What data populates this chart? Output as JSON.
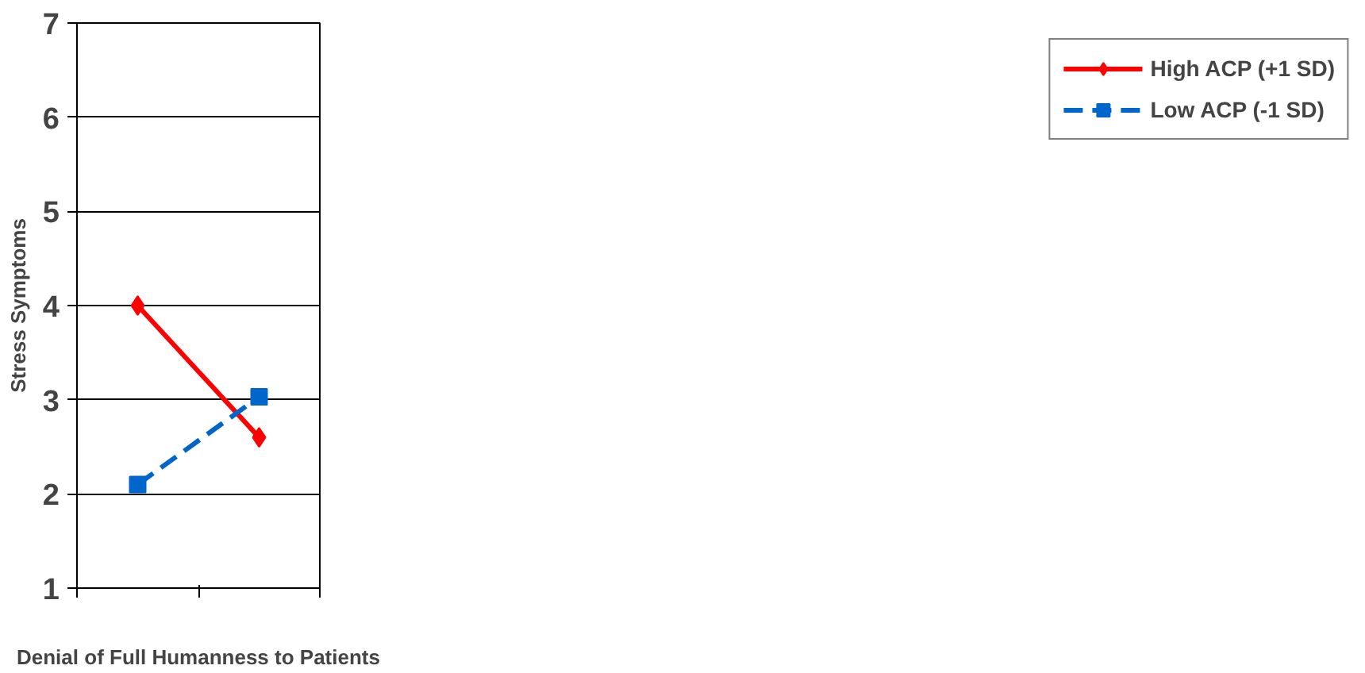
{
  "chart_data": {
    "type": "line",
    "xlabel": "Denial of Full Humanness to Patients",
    "ylabel": "Stress Symptoms",
    "categories": [
      null,
      null
    ],
    "series": [
      {
        "name": "High ACP (+1 SD)",
        "color": "#ff0000",
        "values": [
          4.0,
          2.6
        ],
        "marker": "diamond",
        "line_style": "solid"
      },
      {
        "name": "Low ACP (-1 SD)",
        "color": "#0066cc",
        "values": [
          2.1,
          3.03
        ],
        "marker": "square",
        "line_style": "dashed"
      }
    ],
    "ylim": [
      1,
      7
    ],
    "yticks": [
      1,
      2,
      3,
      4,
      5,
      6,
      7
    ],
    "grid": "y",
    "legend": "right"
  }
}
